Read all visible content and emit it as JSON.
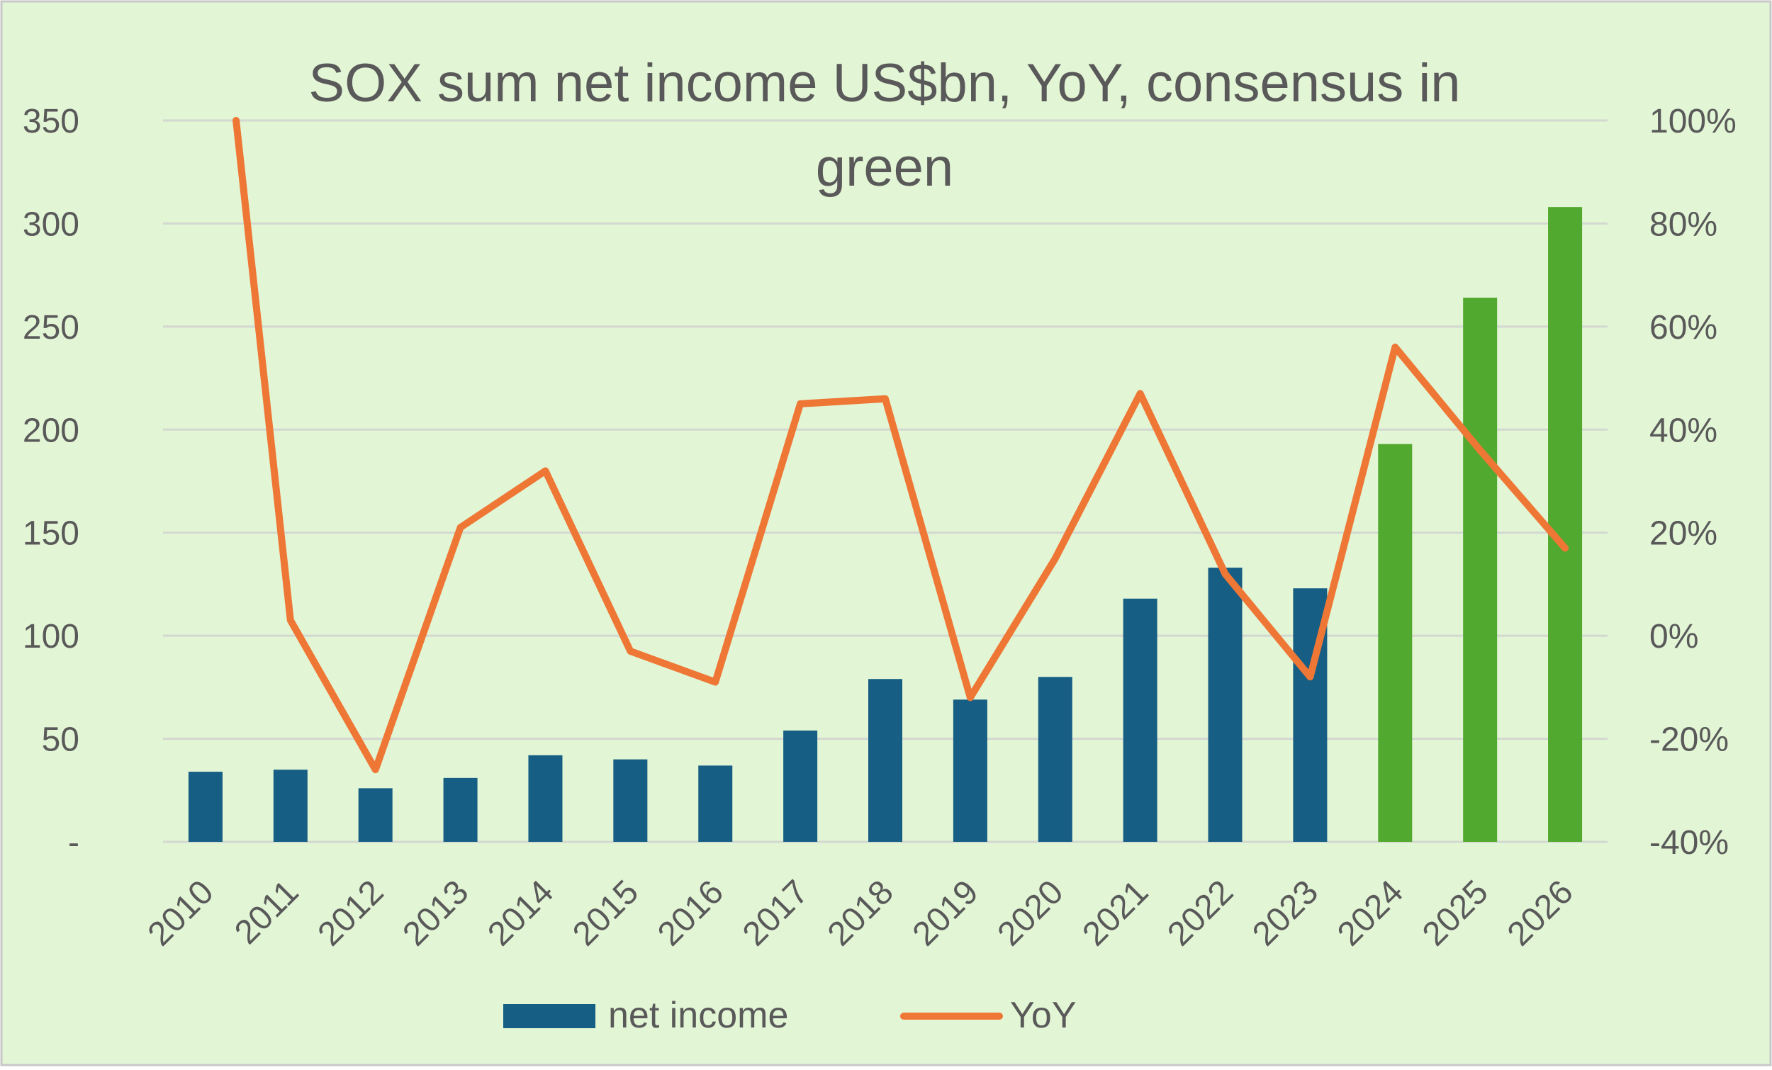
{
  "chart_data": {
    "type": "bar",
    "title_lines": [
      "SOX sum net income US$bn, YoY, consensus in",
      "green"
    ],
    "categories": [
      "2010",
      "2011",
      "2012",
      "2013",
      "2014",
      "2015",
      "2016",
      "2017",
      "2018",
      "2019",
      "2020",
      "2021",
      "2022",
      "2023",
      "2024",
      "2025",
      "2026"
    ],
    "series": [
      {
        "name": "net income",
        "type": "bar",
        "axis": "left",
        "values": [
          34,
          35,
          26,
          31,
          42,
          40,
          37,
          54,
          79,
          69,
          80,
          118,
          133,
          123,
          193,
          264,
          308
        ]
      },
      {
        "name": "YoY",
        "type": "line",
        "axis": "right",
        "values": [
          100,
          3,
          -26,
          21,
          32,
          -3,
          -9,
          45,
          46,
          -12,
          15,
          47,
          12,
          -8,
          56,
          36,
          17
        ]
      }
    ],
    "consensus_categories": [
      "2024",
      "2025",
      "2026"
    ],
    "left_axis": {
      "ylim": [
        0,
        350
      ],
      "tick_labels": [
        "-",
        "50",
        "100",
        "150",
        "200",
        "250",
        "300",
        "350"
      ]
    },
    "right_axis": {
      "ylim": [
        -40,
        100
      ],
      "tick_labels": [
        "-40%",
        "-20%",
        "0%",
        "20%",
        "40%",
        "60%",
        "80%",
        "100%"
      ]
    },
    "grid": true,
    "legend_position": "bottom",
    "colors": {
      "background": "#e2f5d5",
      "border": "#c8c8c8",
      "bar_actual": "#165e84",
      "bar_consensus": "#52a92f",
      "line": "#ef7735",
      "grid": "#d3d8d0",
      "text": "#595959"
    }
  }
}
